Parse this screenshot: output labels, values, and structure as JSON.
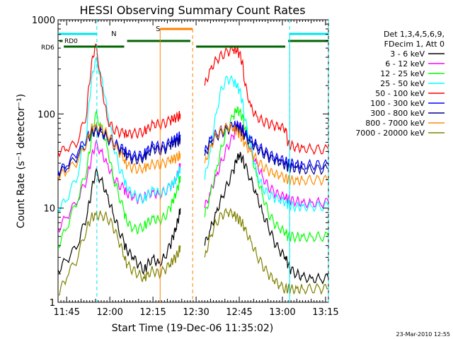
{
  "chart_data": {
    "type": "line",
    "title": "HESSI Observing Summary Count Rates",
    "xlabel": "Start Time (19-Dec-06 11:35:02)",
    "ylabel": "Count Rate (s⁻¹ detector⁻¹)",
    "x_range_minutes_after_1135": [
      7,
      101
    ],
    "y_scale": "log",
    "ylim": [
      1,
      1000
    ],
    "x_ticks": [
      {
        "label": "11:45",
        "m": 10
      },
      {
        "label": "12:00",
        "m": 25
      },
      {
        "label": "12:15",
        "m": 40
      },
      {
        "label": "12:30",
        "m": 55
      },
      {
        "label": "12:45",
        "m": 70
      },
      {
        "label": "13:00",
        "m": 85
      },
      {
        "label": "13:15",
        "m": 100
      }
    ],
    "y_ticks": [
      {
        "label": "1",
        "v": 1
      },
      {
        "label": "10",
        "v": 10
      },
      {
        "label": "100",
        "v": 100
      },
      {
        "label": "1000",
        "v": 1000
      }
    ],
    "legend_header": [
      "Det 1,3,4,5,6,9,",
      "FDecim 1, Att 0"
    ],
    "legend_position": "right",
    "flags": {
      "N_label": "N",
      "S_label": "S",
      "RD0_label": "RD0",
      "RD6_label": "RD6",
      "N_color": "#00e5ee",
      "S_color": "#ff8000",
      "RD_color": "#006400",
      "night_segments": [
        [
          7,
          20.5
        ],
        [
          87.5,
          101
        ]
      ],
      "saa_segment": [
        42.5,
        53.8
      ],
      "rd6_segments": [
        [
          9,
          30
        ],
        [
          31,
          53
        ],
        [
          55,
          86
        ],
        [
          87,
          101
        ]
      ],
      "rd0_segment": [
        7.5,
        8.6
      ]
    },
    "series": [
      {
        "name": "3 - 6 keV",
        "color": "#000000",
        "x": [
          7,
          10,
          14,
          17,
          18.5,
          20,
          22,
          24,
          26,
          28,
          30,
          31,
          33,
          35,
          37,
          38,
          40,
          42,
          44,
          46,
          47,
          48,
          49,
          49.5,
          58,
          60,
          62,
          64,
          66,
          68,
          69,
          70,
          71,
          72,
          74,
          76,
          78,
          80,
          82,
          84,
          86,
          87,
          88,
          90,
          92,
          95,
          98,
          101
        ],
        "y": [
          2.2,
          2.8,
          4,
          8,
          14,
          24,
          20,
          14,
          9,
          6,
          4.2,
          3.5,
          3,
          2.5,
          2.2,
          2.5,
          3,
          2.6,
          3,
          4,
          5,
          6,
          8,
          10,
          4,
          6,
          9,
          13,
          18,
          25,
          32,
          36,
          34,
          28,
          20,
          14,
          9,
          6.5,
          4.5,
          3.5,
          3,
          2.5,
          2.2,
          2,
          1.9,
          1.8,
          1.8,
          1.8
        ]
      },
      {
        "name": "6 - 12 keV",
        "color": "#ff00ff",
        "x": [
          7,
          10,
          14,
          17,
          18.5,
          20,
          22,
          24,
          26,
          28,
          30,
          31,
          33,
          35,
          37,
          38,
          40,
          42,
          44,
          46,
          47,
          48,
          49,
          49.5,
          58,
          60,
          62,
          64,
          66,
          68,
          69,
          70,
          71,
          72,
          74,
          76,
          78,
          80,
          82,
          84,
          86,
          87,
          88,
          90,
          92,
          95,
          98,
          101
        ],
        "y": [
          6,
          8,
          12,
          20,
          32,
          48,
          40,
          30,
          22,
          18,
          16,
          14,
          13,
          12.5,
          13,
          14,
          15,
          14,
          15,
          17,
          18,
          20,
          25,
          30,
          10,
          15,
          22,
          32,
          45,
          58,
          70,
          75,
          72,
          60,
          42,
          30,
          22,
          17,
          15,
          13.5,
          13,
          12.5,
          12,
          12,
          11.5,
          11.5,
          11.5,
          11.5
        ]
      },
      {
        "name": "12 - 25 keV",
        "color": "#00ff00",
        "x": [
          7,
          10,
          14,
          17,
          18.5,
          20,
          22,
          24,
          26,
          28,
          30,
          31,
          33,
          35,
          37,
          38,
          40,
          42,
          44,
          46,
          47,
          48,
          49,
          49.5,
          58,
          60,
          62,
          64,
          66,
          68,
          69,
          70,
          71,
          72,
          74,
          76,
          78,
          80,
          82,
          84,
          86,
          87,
          88,
          90,
          92,
          95,
          98,
          101
        ],
        "y": [
          4,
          6,
          12,
          25,
          50,
          100,
          75,
          45,
          22,
          14,
          9,
          7,
          6,
          6,
          6.5,
          7,
          8,
          7.5,
          8,
          10,
          12,
          14,
          18,
          22,
          8,
          14,
          25,
          45,
          70,
          95,
          110,
          105,
          95,
          70,
          40,
          22,
          14,
          9,
          7,
          6,
          5.5,
          5,
          5,
          5,
          5,
          5,
          5,
          5
        ]
      },
      {
        "name": "25 - 50 keV",
        "color": "#00ffff",
        "x": [
          7,
          10,
          14,
          17,
          18.5,
          20,
          22,
          24,
          26,
          28,
          30,
          31,
          33,
          35,
          37,
          38,
          40,
          42,
          44,
          46,
          47,
          48,
          49,
          49.5,
          58,
          60,
          62,
          64,
          66,
          68,
          69,
          70,
          71,
          72,
          74,
          76,
          78,
          80,
          82,
          84,
          86,
          87,
          88,
          90,
          92,
          95,
          98,
          101
        ],
        "y": [
          10,
          12,
          22,
          60,
          200,
          380,
          250,
          110,
          50,
          28,
          20,
          16,
          14,
          13,
          12.5,
          14,
          16,
          14.5,
          15,
          17,
          18,
          20,
          24,
          27,
          20,
          40,
          100,
          190,
          240,
          220,
          200,
          180,
          140,
          85,
          45,
          24,
          17,
          14,
          13,
          12,
          11.5,
          11,
          10.5,
          10.5,
          10.5,
          10.5,
          10.5,
          10.5
        ]
      },
      {
        "name": "50 - 100 keV",
        "color": "#ff0000",
        "x": [
          7,
          10,
          14,
          17,
          18.5,
          20,
          22,
          24,
          26,
          28,
          30,
          31,
          33,
          35,
          37,
          38,
          40,
          42,
          44,
          46,
          47,
          48,
          49,
          49.5,
          58,
          60,
          62,
          64,
          66,
          68,
          69,
          70,
          71,
          72,
          74,
          76,
          78,
          80,
          82,
          84,
          86,
          87,
          88,
          90,
          92,
          95,
          98,
          101
        ],
        "y": [
          40,
          42,
          50,
          100,
          300,
          550,
          200,
          90,
          70,
          65,
          62,
          60,
          62,
          63,
          66,
          70,
          80,
          78,
          80,
          85,
          88,
          90,
          95,
          100,
          200,
          300,
          380,
          420,
          460,
          480,
          470,
          440,
          360,
          200,
          120,
          95,
          85,
          80,
          75,
          72,
          70,
          48,
          46,
          45,
          44,
          43,
          42,
          42
        ]
      },
      {
        "name": "100 - 300 keV",
        "color": "#0000ff",
        "x": [
          7,
          10,
          14,
          17,
          18.5,
          20,
          22,
          24,
          26,
          28,
          30,
          31,
          33,
          35,
          37,
          38,
          40,
          42,
          44,
          46,
          47,
          48,
          49,
          49.5,
          58,
          60,
          62,
          64,
          66,
          68,
          69,
          70,
          71,
          72,
          74,
          76,
          78,
          80,
          82,
          84,
          86,
          87,
          88,
          90,
          92,
          95,
          98,
          101
        ],
        "y": [
          25,
          28,
          40,
          55,
          65,
          70,
          68,
          60,
          52,
          45,
          42,
          38,
          36,
          36,
          38,
          42,
          48,
          45,
          46,
          50,
          52,
          55,
          58,
          60,
          40,
          55,
          62,
          68,
          72,
          75,
          76,
          74,
          70,
          62,
          55,
          48,
          42,
          38,
          35,
          33,
          32,
          30,
          30,
          30,
          29,
          29,
          29,
          29
        ]
      },
      {
        "name": "300 - 800 keV",
        "color": "#00008b",
        "x": [
          7,
          10,
          14,
          17,
          18.5,
          20,
          22,
          24,
          26,
          28,
          30,
          31,
          33,
          35,
          37,
          38,
          40,
          42,
          44,
          46,
          47,
          48,
          49,
          49.5,
          58,
          60,
          62,
          64,
          66,
          68,
          69,
          70,
          71,
          72,
          74,
          76,
          78,
          80,
          82,
          84,
          86,
          87,
          88,
          90,
          92,
          95,
          98,
          101
        ],
        "y": [
          24,
          26,
          36,
          50,
          62,
          66,
          64,
          56,
          48,
          42,
          38,
          35,
          33,
          33,
          35,
          38,
          44,
          41,
          42,
          46,
          48,
          50,
          52,
          55,
          36,
          50,
          58,
          64,
          68,
          70,
          70,
          68,
          64,
          58,
          50,
          44,
          39,
          35,
          32,
          30,
          29,
          27,
          27,
          27,
          26,
          26,
          26,
          26
        ]
      },
      {
        "name": "800 - 7000 keV",
        "color": "#ff8c00",
        "x": [
          7,
          10,
          14,
          17,
          18.5,
          20,
          22,
          24,
          26,
          28,
          30,
          31,
          33,
          35,
          37,
          38,
          40,
          42,
          44,
          46,
          47,
          48,
          49,
          49.5,
          58,
          60,
          62,
          64,
          66,
          68,
          69,
          70,
          71,
          72,
          74,
          76,
          78,
          80,
          82,
          84,
          86,
          87,
          88,
          90,
          92,
          95,
          98,
          101
        ],
        "y": [
          22,
          24,
          32,
          50,
          70,
          75,
          72,
          62,
          50,
          40,
          32,
          28,
          27,
          26,
          27,
          28,
          30,
          29,
          30,
          32,
          33,
          34,
          36,
          38,
          30,
          45,
          60,
          68,
          72,
          70,
          66,
          62,
          55,
          48,
          40,
          33,
          28,
          25,
          23,
          22,
          21,
          20,
          20,
          20,
          20,
          20,
          20,
          20
        ]
      },
      {
        "name": "7000 - 20000 keV",
        "color": "#808000",
        "x": [
          7,
          10,
          14,
          17,
          18.5,
          20,
          22,
          24,
          26,
          28,
          30,
          31,
          33,
          35,
          37,
          38,
          40,
          42,
          44,
          46,
          47,
          48,
          49,
          49.5,
          58,
          60,
          62,
          64,
          66,
          68,
          69,
          70,
          71,
          72,
          74,
          76,
          78,
          80,
          82,
          84,
          86,
          87,
          88,
          90,
          92,
          95,
          98,
          101
        ],
        "y": [
          1.2,
          1.8,
          3,
          6,
          8,
          8.5,
          8.5,
          8,
          6.5,
          4.5,
          3,
          2.5,
          2.2,
          2,
          1.8,
          2,
          2.2,
          2,
          2.2,
          2.5,
          2.8,
          3,
          3.5,
          4,
          3,
          5,
          7,
          8.5,
          9,
          8.5,
          8,
          7.5,
          7,
          6,
          4.5,
          3.2,
          2.5,
          2,
          1.7,
          1.5,
          1.4,
          1.4,
          1.4,
          1.4,
          1.4,
          1.4,
          1.4,
          1.4
        ]
      }
    ]
  },
  "footer_stamp": "23-Mar-2010 12:55"
}
